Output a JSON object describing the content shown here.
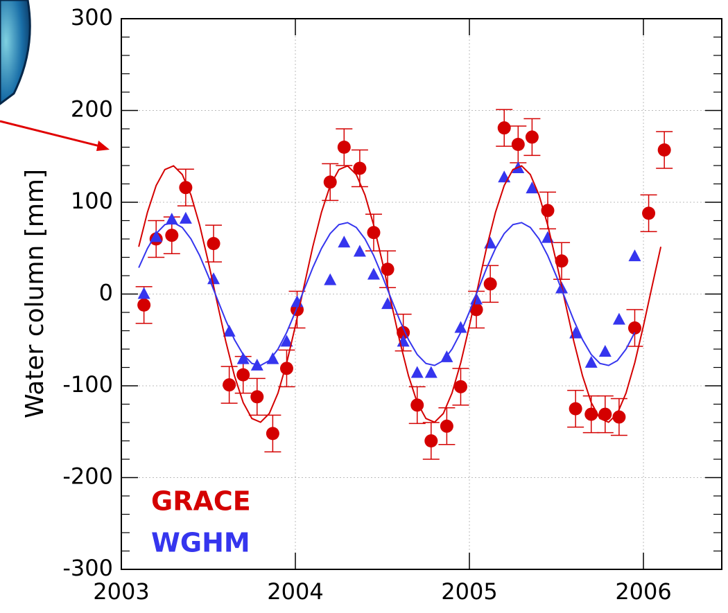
{
  "chart_data": {
    "type": "scatter",
    "y_label": "Water column [mm]",
    "xlim": [
      2003,
      2006.45
    ],
    "xticks": [
      2003,
      2004,
      2005,
      2006
    ],
    "ylim": [
      -300,
      300
    ],
    "yticks": [
      -300,
      -200,
      -100,
      0,
      100,
      200,
      300
    ],
    "yminorticks": [
      -280,
      -260,
      -240,
      -220,
      -180,
      -160,
      -140,
      -120,
      -80,
      -60,
      -40,
      -20,
      20,
      40,
      60,
      80,
      120,
      140,
      160,
      180,
      220,
      240,
      260,
      280
    ],
    "grid": true,
    "legend": "lower left",
    "series": [
      {
        "name": "GRACE",
        "color": "#d40000",
        "marker": "circle",
        "x": [
          2003.13,
          2003.2,
          2003.29,
          2003.37,
          2003.53,
          2003.62,
          2003.7,
          2003.78,
          2003.87,
          2003.95,
          2004.01,
          2004.2,
          2004.28,
          2004.37,
          2004.45,
          2004.53,
          2004.62,
          2004.7,
          2004.78,
          2004.87,
          2004.95,
          2005.04,
          2005.12,
          2005.2,
          2005.28,
          2005.36,
          2005.45,
          2005.53,
          2005.61,
          2005.7,
          2005.78,
          2005.86,
          2005.95,
          2006.03,
          2006.12
        ],
        "values": [
          -12,
          60,
          64,
          116,
          55,
          -99,
          -88,
          -112,
          -152,
          -81,
          -17,
          122,
          160,
          137,
          67,
          27,
          -42,
          -121,
          -160,
          -144,
          -101,
          -17,
          11,
          181,
          163,
          171,
          91,
          36,
          -125,
          -131,
          -131,
          -134,
          -37,
          88,
          157
        ],
        "errors": [
          20,
          20,
          20,
          20,
          20,
          20,
          20,
          20,
          20,
          20,
          20,
          20,
          20,
          20,
          20,
          20,
          20,
          20,
          20,
          20,
          20,
          20,
          20,
          20,
          20,
          20,
          20,
          20,
          20,
          20,
          20,
          20,
          20,
          20,
          20
        ]
      },
      {
        "name": "WGHM",
        "color": "#3535ee",
        "marker": "triangle",
        "x": [
          2003.13,
          2003.2,
          2003.29,
          2003.37,
          2003.53,
          2003.62,
          2003.7,
          2003.78,
          2003.87,
          2003.95,
          2004.01,
          2004.2,
          2004.28,
          2004.37,
          2004.45,
          2004.53,
          2004.62,
          2004.7,
          2004.78,
          2004.87,
          2004.95,
          2005.04,
          2005.12,
          2005.2,
          2005.28,
          2005.36,
          2005.45,
          2005.53,
          2005.61,
          2005.7,
          2005.78,
          2005.86,
          2005.95
        ],
        "values": [
          0,
          62,
          81,
          82,
          16,
          -41,
          -71,
          -78,
          -71,
          -52,
          -9,
          15,
          56,
          46,
          21,
          -11,
          -52,
          -86,
          -86,
          -69,
          -37,
          -6,
          55,
          127,
          137,
          115,
          61,
          6,
          -43,
          -75,
          -63,
          -28,
          41
        ]
      },
      {
        "type": "line",
        "color": "#d40000",
        "x": [
          2003.1,
          2003.15,
          2003.2,
          2003.25,
          2003.3,
          2003.35,
          2003.4,
          2003.45,
          2003.5,
          2003.55,
          2003.6,
          2003.65,
          2003.7,
          2003.75,
          2003.8,
          2003.85,
          2003.9,
          2003.95,
          2004.0,
          2004.05,
          2004.1,
          2004.15,
          2004.2,
          2004.25,
          2004.3,
          2004.35,
          2004.4,
          2004.45,
          2004.5,
          2004.55,
          2004.6,
          2004.65,
          2004.7,
          2004.75,
          2004.8,
          2004.85,
          2004.9,
          2004.95,
          2005.0,
          2005.05,
          2005.1,
          2005.15,
          2005.2,
          2005.25,
          2005.3,
          2005.35,
          2005.4,
          2005.45,
          2005.5,
          2005.55,
          2005.6,
          2005.65,
          2005.7,
          2005.75,
          2005.8,
          2005.85,
          2005.9,
          2005.95,
          2006.0,
          2006.05,
          2006.1
        ],
        "values": [
          51.5,
          89.2,
          118.2,
          135.6,
          139.7,
          130.2,
          107.9,
          75.0,
          34.8,
          -8.8,
          -51.5,
          -89.2,
          -118.2,
          -135.6,
          -139.7,
          -130.2,
          -107.9,
          -75.0,
          -34.8,
          8.8,
          51.5,
          89.2,
          118.2,
          135.6,
          139.7,
          130.2,
          107.9,
          75.0,
          34.8,
          -8.8,
          -51.5,
          -89.2,
          -118.2,
          -135.6,
          -139.7,
          -130.2,
          -107.9,
          -75.0,
          -34.8,
          8.8,
          51.5,
          89.2,
          118.2,
          135.6,
          139.7,
          130.2,
          107.9,
          75.0,
          34.8,
          -8.8,
          -51.5,
          -89.2,
          -118.2,
          -135.6,
          -139.7,
          -130.2,
          -107.9,
          -75.0,
          -34.8,
          8.8,
          51.5
        ]
      },
      {
        "type": "line",
        "color": "#3535ee",
        "x": [
          2003.1,
          2003.15,
          2003.2,
          2003.25,
          2003.3,
          2003.35,
          2003.4,
          2003.45,
          2003.5,
          2003.55,
          2003.6,
          2003.65,
          2003.7,
          2003.75,
          2003.8,
          2003.85,
          2003.9,
          2003.95,
          2004.0,
          2004.05,
          2004.1,
          2004.15,
          2004.2,
          2004.25,
          2004.3,
          2004.35,
          2004.4,
          2004.45,
          2004.5,
          2004.55,
          2004.6,
          2004.65,
          2004.7,
          2004.75,
          2004.8,
          2004.85,
          2004.9,
          2004.95,
          2005.0,
          2005.05,
          2005.1,
          2005.15,
          2005.2,
          2005.25,
          2005.3,
          2005.35,
          2005.4,
          2005.45,
          2005.5,
          2005.55,
          2005.6,
          2005.65,
          2005.7,
          2005.75,
          2005.8,
          2005.85,
          2005.9,
          2005.95
        ],
        "values": [
          28.7,
          49.7,
          65.9,
          75.6,
          77.8,
          72.5,
          60.1,
          41.8,
          19.4,
          -4.9,
          -28.7,
          -49.7,
          -65.9,
          -75.6,
          -77.8,
          -72.5,
          -60.1,
          -41.8,
          -19.4,
          4.9,
          28.7,
          49.7,
          65.9,
          75.6,
          77.8,
          72.5,
          60.1,
          41.8,
          19.4,
          -4.9,
          -28.7,
          -49.7,
          -65.9,
          -75.6,
          -77.8,
          -72.5,
          -60.1,
          -41.8,
          -19.4,
          4.9,
          28.7,
          49.7,
          65.9,
          75.6,
          77.8,
          72.5,
          60.1,
          41.8,
          19.4,
          -4.9,
          -28.7,
          -49.7,
          -65.9,
          -75.6,
          -77.8,
          -72.5,
          -60.1,
          -41.8
        ]
      }
    ]
  }
}
